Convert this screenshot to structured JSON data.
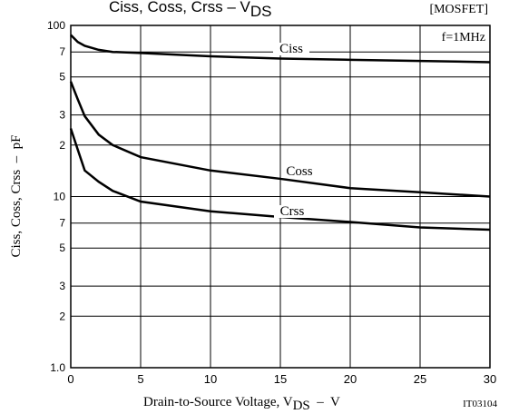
{
  "chart_data": {
    "type": "line",
    "title": "Ciss, Coss, Crss  –  V",
    "title_sub": "DS",
    "tag": "[MOSFET]",
    "annotation": "f=1MHz",
    "code": "IT03104",
    "xlabel": "Drain-to-Source Voltage, V",
    "xlabel_sub": "DS",
    "xlabel_unit": "  –  V",
    "ylabel": "Ciss, Coss, Crss  –  pF",
    "log_y": true,
    "grid": true,
    "xlim": [
      0,
      30
    ],
    "xticks": [
      0,
      5,
      10,
      15,
      20,
      25,
      30
    ],
    "ylim": [
      1,
      100
    ],
    "yticks": [
      {
        "value": 1,
        "label": "1.0"
      },
      2,
      3,
      5,
      7,
      10,
      {
        "value": 20,
        "label": "2"
      },
      {
        "value": 30,
        "label": "3"
      },
      {
        "value": 50,
        "label": "5"
      },
      {
        "value": 70,
        "label": "7"
      },
      100
    ],
    "x": [
      0,
      0.5,
      1,
      2,
      3,
      5,
      10,
      15,
      20,
      25,
      30
    ],
    "series": [
      {
        "name": "Ciss",
        "color": "#000000",
        "values": [
          88,
          80,
          76,
          72,
          70,
          69,
          66,
          64,
          63,
          62,
          61
        ]
      },
      {
        "name": "Coss",
        "color": "#000000",
        "values": [
          47,
          37,
          29.5,
          23,
          20,
          17,
          14.2,
          12.7,
          11.2,
          10.6,
          10
        ]
      },
      {
        "name": "Crss",
        "color": "#000000",
        "values": [
          25,
          18.8,
          14.2,
          12.2,
          10.8,
          9.35,
          8.2,
          7.6,
          7.1,
          6.6,
          6.4
        ]
      }
    ]
  }
}
